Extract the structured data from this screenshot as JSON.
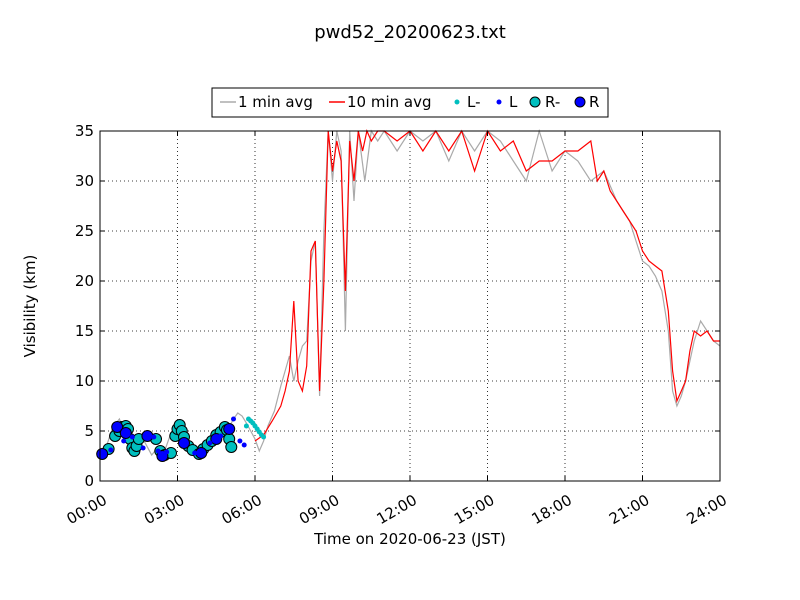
{
  "chart_data": {
    "type": "line",
    "title": "pwd52_20200623.txt",
    "xlabel": "Time on 2020-06-23 (JST)",
    "ylabel": "Visibility (km)",
    "xlim": [
      "00:00",
      "24:00"
    ],
    "ylim": [
      0,
      35
    ],
    "xticks": [
      "00:00",
      "03:00",
      "06:00",
      "09:00",
      "12:00",
      "15:00",
      "18:00",
      "21:00",
      "24:00"
    ],
    "yticks": [
      "0",
      "5",
      "10",
      "15",
      "20",
      "25",
      "30",
      "35"
    ],
    "grid": true,
    "legend_position": "top-center",
    "legend": [
      "1 min avg",
      "10 min avg",
      "L-",
      "L",
      "R-",
      "R"
    ],
    "colors": {
      "one_min": "#aaaaaa",
      "ten_min": "#ff0000",
      "L_minus": "#00bfbf",
      "L": "#0000ff",
      "R_minus": "#00bfbf",
      "R": "#0000ff"
    },
    "series": [
      {
        "name": "1 min avg",
        "x": [
          "00:00",
          "00:15",
          "00:30",
          "00:45",
          "01:00",
          "01:15",
          "01:30",
          "01:45",
          "02:00",
          "02:15",
          "02:30",
          "02:45",
          "03:00",
          "03:15",
          "03:30",
          "03:45",
          "04:00",
          "04:15",
          "04:30",
          "04:45",
          "05:00",
          "05:10",
          "05:20",
          "05:30",
          "05:40",
          "05:50",
          "06:00",
          "06:10",
          "06:20",
          "06:30",
          "06:45",
          "07:00",
          "07:10",
          "07:20",
          "07:30",
          "07:40",
          "07:50",
          "08:00",
          "08:10",
          "08:20",
          "08:30",
          "08:40",
          "08:50",
          "09:00",
          "09:10",
          "09:20",
          "09:30",
          "09:40",
          "09:50",
          "10:00",
          "10:15",
          "10:30",
          "10:45",
          "11:00",
          "11:30",
          "12:00",
          "12:30",
          "13:00",
          "13:30",
          "14:00",
          "14:30",
          "15:00",
          "15:30",
          "16:00",
          "16:30",
          "17:00",
          "17:30",
          "18:00",
          "18:30",
          "19:00",
          "19:30",
          "20:00",
          "20:15",
          "20:30",
          "20:45",
          "21:00",
          "21:15",
          "21:30",
          "21:45",
          "22:00",
          "22:10",
          "22:20",
          "22:30",
          "22:40",
          "22:50",
          "23:00",
          "23:15",
          "23:30",
          "23:45",
          "24:00"
        ],
        "y": [
          2.6,
          3.5,
          5.4,
          6.2,
          4.2,
          3.2,
          4.5,
          3.8,
          2.6,
          3.4,
          3.0,
          4.8,
          5.8,
          3.4,
          2.8,
          2.9,
          3.8,
          4.2,
          5.2,
          5.6,
          5.4,
          6.2,
          6.8,
          6.5,
          5.8,
          5.0,
          4.2,
          3.0,
          4.0,
          5.5,
          7.0,
          9.5,
          11.0,
          12.5,
          10.0,
          12.0,
          13.5,
          14.0,
          22.0,
          24.0,
          8.5,
          25.0,
          35.0,
          30.0,
          35.0,
          33.0,
          15.0,
          35.0,
          28.0,
          35.0,
          30.0,
          35.0,
          34.0,
          35.0,
          33.0,
          35.0,
          34.0,
          35.0,
          32.0,
          35.0,
          33.0,
          35.0,
          34.0,
          32.0,
          30.0,
          35.0,
          31.0,
          33.0,
          32.0,
          30.0,
          31.0,
          28.0,
          27.0,
          26.0,
          24.0,
          22.0,
          21.5,
          20.5,
          19.0,
          15.0,
          9.0,
          7.5,
          8.5,
          10.0,
          12.0,
          14.0,
          16.0,
          15.0,
          14.0,
          13.5
        ]
      },
      {
        "name": "10 min avg",
        "x": [
          "06:00",
          "06:20",
          "06:40",
          "07:00",
          "07:10",
          "07:20",
          "07:30",
          "07:40",
          "07:50",
          "08:00",
          "08:10",
          "08:20",
          "08:30",
          "08:40",
          "08:50",
          "09:00",
          "09:10",
          "09:20",
          "09:30",
          "09:40",
          "09:50",
          "10:00",
          "10:10",
          "10:20",
          "10:30",
          "10:45",
          "11:00",
          "11:30",
          "12:00",
          "12:30",
          "13:00",
          "13:30",
          "14:00",
          "14:30",
          "15:00",
          "15:30",
          "16:00",
          "16:30",
          "17:00",
          "17:30",
          "18:00",
          "18:30",
          "19:00",
          "19:15",
          "19:30",
          "19:45",
          "20:00",
          "20:15",
          "20:30",
          "20:45",
          "21:00",
          "21:15",
          "21:30",
          "21:45",
          "22:00",
          "22:10",
          "22:20",
          "22:30",
          "22:40",
          "22:50",
          "23:00",
          "23:15",
          "23:30",
          "23:45",
          "24:00"
        ],
        "y": [
          4.0,
          4.6,
          6.0,
          7.5,
          9.0,
          11.0,
          18.0,
          10.0,
          9.0,
          11.5,
          23.0,
          24.0,
          9.0,
          20.0,
          35.0,
          31.0,
          34.0,
          32.0,
          19.0,
          34.0,
          30.0,
          35.0,
          33.0,
          35.0,
          34.0,
          35.0,
          35.0,
          34.0,
          35.0,
          33.0,
          35.0,
          33.0,
          35.0,
          31.0,
          35.0,
          33.0,
          34.0,
          31.0,
          32.0,
          32.0,
          33.0,
          33.0,
          34.0,
          30.0,
          31.0,
          29.0,
          28.0,
          27.0,
          26.0,
          25.0,
          23.0,
          22.0,
          21.5,
          21.0,
          17.0,
          11.0,
          8.0,
          9.0,
          10.0,
          13.0,
          15.0,
          14.5,
          15.0,
          14.0,
          14.0
        ]
      },
      {
        "name": "L-",
        "x": [
          "05:40",
          "05:45",
          "05:50",
          "05:55",
          "06:00",
          "06:05",
          "06:10",
          "06:15",
          "06:20"
        ],
        "y": [
          5.5,
          6.2,
          6.0,
          5.8,
          5.5,
          5.2,
          4.9,
          4.6,
          4.4
        ]
      },
      {
        "name": "L",
        "x": [
          "00:10",
          "00:25",
          "00:55",
          "01:15",
          "01:40",
          "02:05",
          "02:15",
          "02:35",
          "03:40",
          "04:15",
          "04:40",
          "05:10",
          "05:25",
          "05:35"
        ],
        "y": [
          2.8,
          3.1,
          4.0,
          4.4,
          3.3,
          4.4,
          3.0,
          2.9,
          2.8,
          3.8,
          4.5,
          6.2,
          4.0,
          3.6
        ]
      },
      {
        "name": "R-",
        "x": [
          "00:20",
          "00:35",
          "00:45",
          "00:50",
          "00:55",
          "01:00",
          "01:05",
          "01:10",
          "01:15",
          "01:20",
          "01:25",
          "01:30",
          "02:10",
          "02:20",
          "02:30",
          "02:45",
          "02:55",
          "03:00",
          "03:05",
          "03:10",
          "03:15",
          "03:25",
          "03:35",
          "03:50",
          "04:00",
          "04:10",
          "04:20",
          "04:30",
          "04:40",
          "04:50",
          "04:55",
          "05:00",
          "05:05"
        ],
        "y": [
          3.2,
          4.5,
          5.0,
          5.4,
          5.3,
          5.5,
          5.2,
          4.2,
          3.3,
          3.0,
          3.5,
          4.2,
          4.2,
          3.0,
          2.6,
          2.8,
          4.5,
          5.2,
          5.6,
          5.0,
          4.4,
          3.5,
          3.1,
          2.7,
          3.2,
          3.6,
          4.0,
          4.6,
          4.9,
          5.4,
          5.1,
          4.2,
          3.4
        ]
      },
      {
        "name": "R",
        "x": [
          "00:05",
          "00:40",
          "01:00",
          "01:50",
          "02:25",
          "03:15",
          "03:55",
          "04:30",
          "05:00"
        ],
        "y": [
          2.7,
          5.4,
          4.8,
          4.5,
          2.5,
          3.8,
          2.8,
          4.2,
          5.2
        ]
      }
    ]
  }
}
